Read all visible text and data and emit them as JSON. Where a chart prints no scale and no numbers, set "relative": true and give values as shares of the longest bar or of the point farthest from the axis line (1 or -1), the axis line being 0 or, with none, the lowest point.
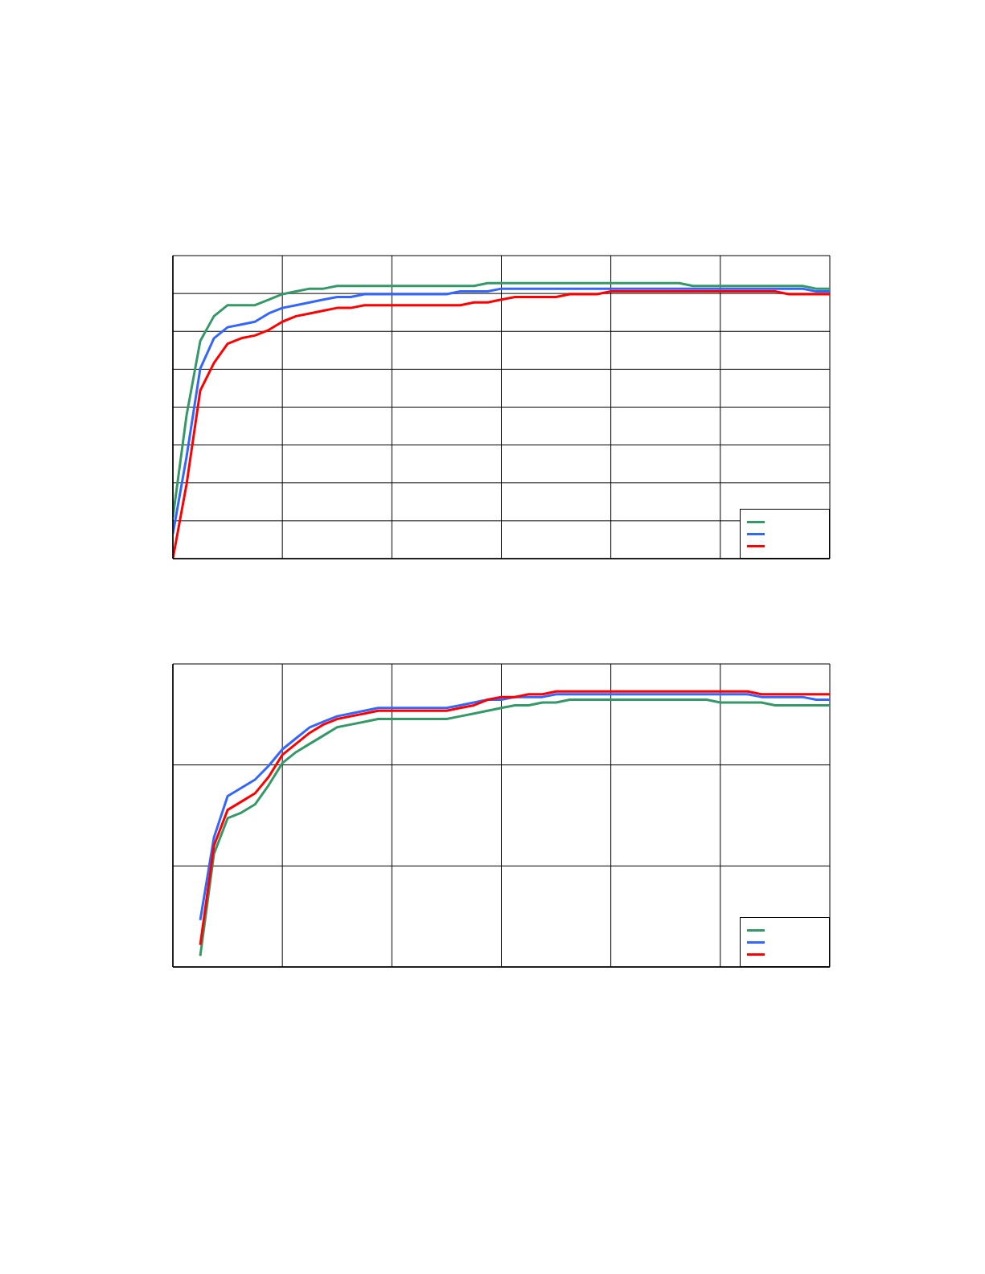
{
  "chart_data": [
    {
      "type": "line",
      "relative": true,
      "grid": true,
      "tick_labels": false,
      "categories": [
        null,
        null,
        null,
        null,
        null,
        null,
        null,
        null,
        null,
        null,
        null,
        null,
        null,
        null,
        null,
        null,
        null,
        null,
        null,
        null,
        null,
        null,
        null,
        null,
        null,
        null,
        null,
        null,
        null,
        null,
        null,
        null,
        null,
        null,
        null,
        null,
        null,
        null,
        null,
        null,
        null,
        null,
        null,
        null,
        null,
        null,
        null,
        null,
        null
      ],
      "series": [
        {
          "color": "#339966",
          "values": [
            0.15,
            0.52,
            0.79,
            0.88,
            0.92,
            0.92,
            0.92,
            0.94,
            0.96,
            0.97,
            0.98,
            0.98,
            0.99,
            0.99,
            0.99,
            0.99,
            0.99,
            0.99,
            0.99,
            0.99,
            0.99,
            0.99,
            0.99,
            1,
            1,
            1,
            1,
            1,
            1,
            1,
            1,
            1,
            1,
            1,
            1,
            1,
            1,
            1,
            0.99,
            0.99,
            0.99,
            0.99,
            0.99,
            0.99,
            0.99,
            0.99,
            0.99,
            0.98,
            0.98
          ]
        },
        {
          "color": "#3366ff",
          "values": [
            0.09,
            0.37,
            0.69,
            0.8,
            0.84,
            0.85,
            0.86,
            0.89,
            0.91,
            0.92,
            0.93,
            0.94,
            0.95,
            0.95,
            0.96,
            0.96,
            0.96,
            0.96,
            0.96,
            0.96,
            0.96,
            0.97,
            0.97,
            0.97,
            0.98,
            0.98,
            0.98,
            0.98,
            0.98,
            0.98,
            0.98,
            0.98,
            0.98,
            0.98,
            0.98,
            0.98,
            0.98,
            0.98,
            0.98,
            0.98,
            0.98,
            0.98,
            0.98,
            0.98,
            0.98,
            0.98,
            0.98,
            0.97,
            0.97
          ]
        },
        {
          "color": "#ff0000",
          "values": [
            0,
            0.27,
            0.61,
            0.71,
            0.78,
            0.8,
            0.81,
            0.83,
            0.86,
            0.88,
            0.89,
            0.9,
            0.91,
            0.91,
            0.92,
            0.92,
            0.92,
            0.92,
            0.92,
            0.92,
            0.92,
            0.92,
            0.93,
            0.93,
            0.94,
            0.95,
            0.95,
            0.95,
            0.95,
            0.96,
            0.96,
            0.96,
            0.97,
            0.97,
            0.97,
            0.97,
            0.97,
            0.97,
            0.97,
            0.97,
            0.97,
            0.97,
            0.97,
            0.97,
            0.97,
            0.96,
            0.96,
            0.96,
            0.96
          ]
        }
      ]
    },
    {
      "type": "line",
      "relative": true,
      "grid": true,
      "tick_labels": false,
      "categories": [
        null,
        null,
        null,
        null,
        null,
        null,
        null,
        null,
        null,
        null,
        null,
        null,
        null,
        null,
        null,
        null,
        null,
        null,
        null,
        null,
        null,
        null,
        null,
        null,
        null,
        null,
        null,
        null,
        null,
        null,
        null,
        null,
        null,
        null,
        null,
        null,
        null,
        null,
        null,
        null,
        null,
        null,
        null,
        null,
        null,
        null,
        null,
        null,
        null
      ],
      "series": [
        {
          "color": "#339966",
          "values": [
            null,
            null,
            0.04,
            0.41,
            0.54,
            0.56,
            0.59,
            0.66,
            0.74,
            0.78,
            0.81,
            0.84,
            0.87,
            0.88,
            0.89,
            0.9,
            0.9,
            0.9,
            0.9,
            0.9,
            0.9,
            0.91,
            0.92,
            0.93,
            0.94,
            0.95,
            0.95,
            0.96,
            0.96,
            0.97,
            0.97,
            0.97,
            0.97,
            0.97,
            0.97,
            0.97,
            0.97,
            0.97,
            0.97,
            0.97,
            0.96,
            0.96,
            0.96,
            0.96,
            0.95,
            0.95,
            0.95,
            0.95,
            0.95
          ]
        },
        {
          "color": "#3366ff",
          "values": [
            null,
            null,
            0.17,
            0.47,
            0.62,
            0.65,
            0.68,
            0.73,
            0.79,
            0.83,
            0.87,
            0.89,
            0.91,
            0.92,
            0.93,
            0.94,
            0.94,
            0.94,
            0.94,
            0.94,
            0.94,
            0.95,
            0.96,
            0.97,
            0.97,
            0.98,
            0.98,
            0.98,
            0.99,
            0.99,
            0.99,
            0.99,
            0.99,
            0.99,
            0.99,
            0.99,
            0.99,
            0.99,
            0.99,
            0.99,
            0.99,
            0.99,
            0.99,
            0.98,
            0.98,
            0.98,
            0.98,
            0.97,
            0.97
          ]
        },
        {
          "color": "#ff0000",
          "values": [
            null,
            null,
            0.08,
            0.44,
            0.57,
            0.6,
            0.63,
            0.69,
            0.77,
            0.81,
            0.85,
            0.88,
            0.9,
            0.91,
            0.92,
            0.93,
            0.93,
            0.93,
            0.93,
            0.93,
            0.93,
            0.94,
            0.95,
            0.97,
            0.98,
            0.98,
            0.99,
            0.99,
            1,
            1,
            1,
            1,
            1,
            1,
            1,
            1,
            1,
            1,
            1,
            1,
            1,
            1,
            1,
            0.99,
            0.99,
            0.99,
            0.99,
            0.99,
            0.99
          ]
        }
      ]
    }
  ]
}
